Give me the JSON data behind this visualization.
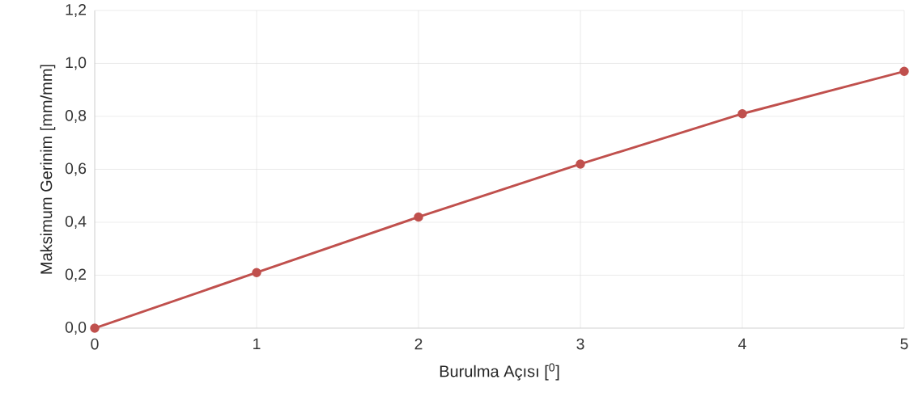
{
  "chart_data": {
    "type": "line",
    "xlabel": "Burulma Açısı [$^{0}$]",
    "ylabel": "Maksimum Gerinim [mm/mm]",
    "x": [
      0,
      1,
      2,
      3,
      4,
      5
    ],
    "values": [
      0.0,
      0.21,
      0.42,
      0.62,
      0.81,
      0.97
    ],
    "color": "#c0504d",
    "marker": "circle",
    "line_style": "solid",
    "grid": true,
    "xlim": [
      0,
      5
    ],
    "xticks": [
      0,
      1,
      2,
      3,
      4,
      5
    ],
    "ylim": [
      0,
      1.2
    ],
    "yticks": [
      {
        "value": 0,
        "label": "0,0"
      },
      {
        "value": 0.2,
        "label": "0,2"
      },
      {
        "value": 0.4,
        "label": "0,4"
      },
      {
        "value": 0.6,
        "label": "0,6"
      },
      {
        "value": 0.8,
        "label": "0,8"
      },
      {
        "value": 1.0,
        "label": "1,0"
      },
      {
        "value": 1.2,
        "label": "1,2"
      }
    ]
  }
}
